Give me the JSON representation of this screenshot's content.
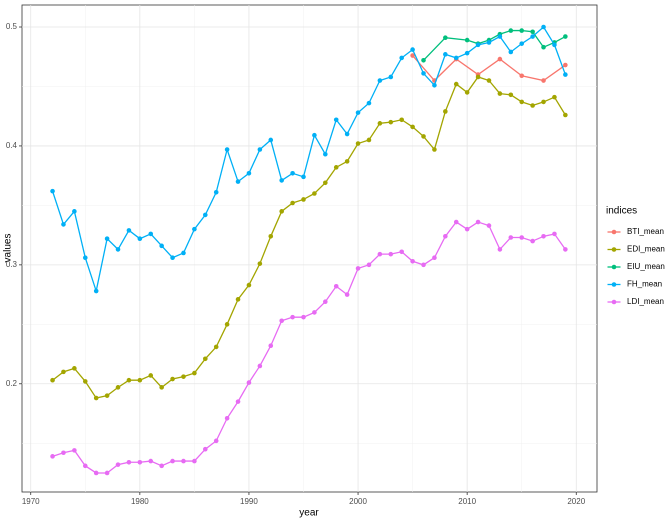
{
  "chart_data": {
    "type": "line",
    "x_label": "year",
    "y_label": "values",
    "legend_title": "indices",
    "xlim": [
      1969.2,
      2021.9
    ],
    "xticks": [
      1970,
      1980,
      1990,
      2000,
      2010,
      2020
    ],
    "ylim": [
      0.109,
      0.5185
    ],
    "yticks": [
      0.2,
      0.3,
      0.4,
      0.5
    ],
    "grid": true,
    "legend_position": "right",
    "series": [
      {
        "name": "BTI_mean",
        "color": "#F8766D",
        "x": [
          2005,
          2007,
          2009,
          2011,
          2013,
          2015,
          2017,
          2019
        ],
        "values": [
          0.476,
          0.455,
          0.473,
          0.46,
          0.473,
          0.459,
          0.455,
          0.468
        ]
      },
      {
        "name": "EDI_mean",
        "color": "#A3A500",
        "x": [
          1972,
          1973,
          1974,
          1975,
          1976,
          1977,
          1978,
          1979,
          1980,
          1981,
          1982,
          1983,
          1984,
          1985,
          1986,
          1987,
          1988,
          1989,
          1990,
          1991,
          1992,
          1993,
          1994,
          1995,
          1996,
          1997,
          1998,
          1999,
          2000,
          2001,
          2002,
          2003,
          2004,
          2005,
          2006,
          2007,
          2008,
          2009,
          2010,
          2011,
          2012,
          2013,
          2014,
          2015,
          2016,
          2017,
          2018,
          2019
        ],
        "values": [
          0.203,
          0.21,
          0.213,
          0.202,
          0.188,
          0.19,
          0.197,
          0.203,
          0.203,
          0.207,
          0.197,
          0.204,
          0.206,
          0.209,
          0.221,
          0.231,
          0.25,
          0.271,
          0.283,
          0.301,
          0.324,
          0.345,
          0.352,
          0.355,
          0.36,
          0.369,
          0.382,
          0.387,
          0.402,
          0.405,
          0.419,
          0.42,
          0.422,
          0.416,
          0.408,
          0.397,
          0.429,
          0.452,
          0.445,
          0.458,
          0.455,
          0.444,
          0.443,
          0.437,
          0.434,
          0.437,
          0.441,
          0.426
        ]
      },
      {
        "name": "EIU_mean",
        "color": "#00BF7D",
        "x": [
          2006,
          2008,
          2010,
          2011,
          2012,
          2013,
          2014,
          2015,
          2016,
          2017,
          2018,
          2019
        ],
        "values": [
          0.472,
          0.491,
          0.489,
          0.486,
          0.489,
          0.494,
          0.497,
          0.497,
          0.496,
          0.483,
          0.487,
          0.492
        ]
      },
      {
        "name": "FH_mean",
        "color": "#00B0F6",
        "x": [
          1972,
          1973,
          1974,
          1975,
          1976,
          1977,
          1978,
          1979,
          1980,
          1981,
          1982,
          1983,
          1984,
          1985,
          1986,
          1987,
          1988,
          1989,
          1990,
          1991,
          1992,
          1993,
          1994,
          1995,
          1996,
          1997,
          1998,
          1999,
          2000,
          2001,
          2002,
          2003,
          2004,
          2005,
          2006,
          2007,
          2008,
          2009,
          2010,
          2011,
          2012,
          2013,
          2014,
          2015,
          2016,
          2017,
          2018,
          2019
        ],
        "values": [
          0.362,
          0.334,
          0.345,
          0.306,
          0.278,
          0.322,
          0.313,
          0.329,
          0.322,
          0.326,
          0.316,
          0.306,
          0.31,
          0.33,
          0.342,
          0.361,
          0.397,
          0.37,
          0.377,
          0.397,
          0.405,
          0.371,
          0.377,
          0.374,
          0.409,
          0.393,
          0.422,
          0.41,
          0.428,
          0.436,
          0.455,
          0.458,
          0.474,
          0.481,
          0.461,
          0.451,
          0.477,
          0.474,
          0.478,
          0.485,
          0.487,
          0.492,
          0.479,
          0.486,
          0.492,
          0.5,
          0.485,
          0.46
        ]
      },
      {
        "name": "LDI_mean",
        "color": "#E76BF3",
        "x": [
          1972,
          1973,
          1974,
          1975,
          1976,
          1977,
          1978,
          1979,
          1980,
          1981,
          1982,
          1983,
          1984,
          1985,
          1986,
          1987,
          1988,
          1989,
          1990,
          1991,
          1992,
          1993,
          1994,
          1995,
          1996,
          1997,
          1998,
          1999,
          2000,
          2001,
          2002,
          2003,
          2004,
          2005,
          2006,
          2007,
          2008,
          2009,
          2010,
          2011,
          2012,
          2013,
          2014,
          2015,
          2016,
          2017,
          2018,
          2019
        ],
        "values": [
          0.139,
          0.142,
          0.144,
          0.131,
          0.125,
          0.125,
          0.132,
          0.134,
          0.134,
          0.135,
          0.131,
          0.135,
          0.135,
          0.135,
          0.145,
          0.152,
          0.171,
          0.185,
          0.201,
          0.215,
          0.232,
          0.253,
          0.256,
          0.256,
          0.26,
          0.269,
          0.282,
          0.275,
          0.297,
          0.3,
          0.309,
          0.309,
          0.311,
          0.303,
          0.3,
          0.306,
          0.324,
          0.336,
          0.33,
          0.336,
          0.333,
          0.313,
          0.323,
          0.323,
          0.32,
          0.324,
          0.326,
          0.313
        ]
      }
    ]
  }
}
